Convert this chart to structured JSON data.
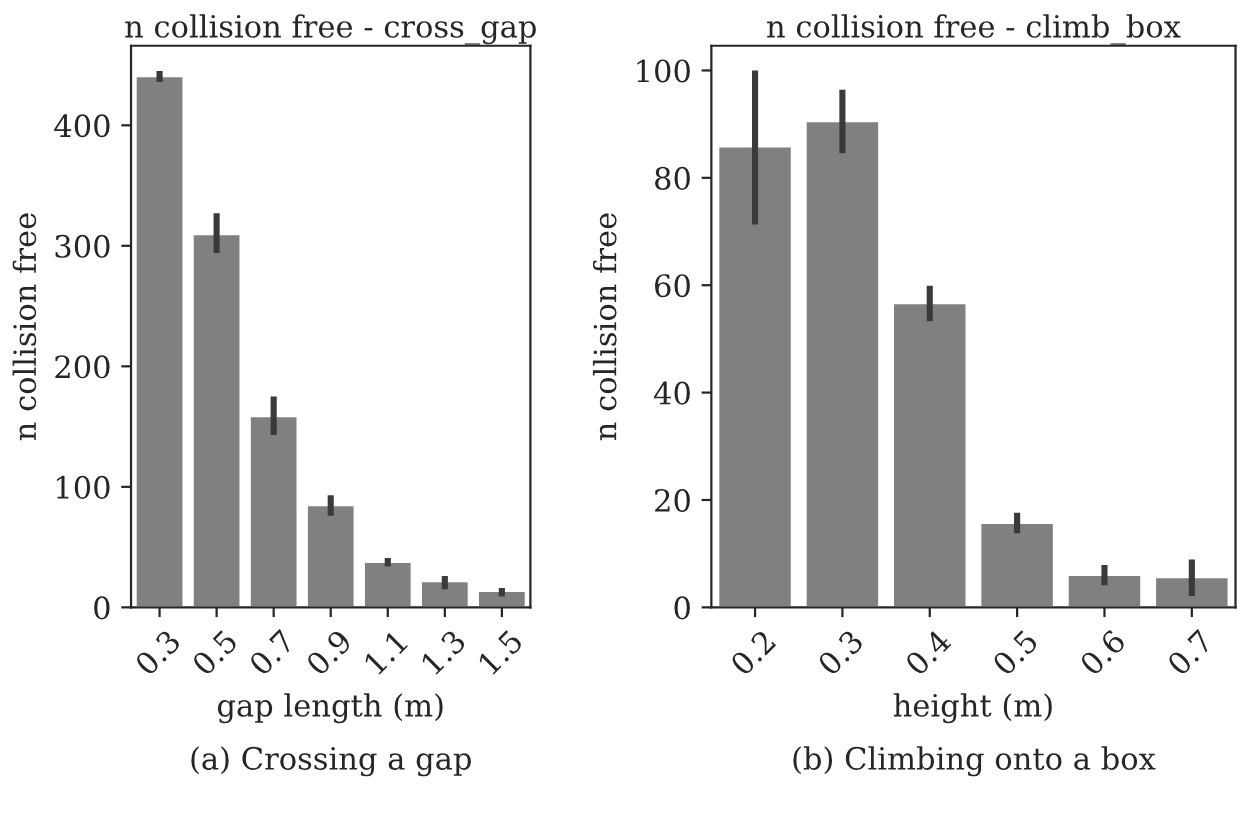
{
  "chart_data": [
    {
      "type": "bar",
      "title": "n collision free - cross_gap",
      "xlabel": "gap length (m)",
      "ylabel": "n collision free",
      "categories": [
        "0.3",
        "0.5",
        "0.7",
        "0.9",
        "1.1",
        "1.3",
        "1.5"
      ],
      "series": [
        {
          "color": "#808080",
          "values": [
            441,
            310,
            159,
            85,
            38,
            22,
            14
          ],
          "errors": [
            [
              436,
              445
            ],
            [
              294,
              327
            ],
            [
              143,
              175
            ],
            [
              76,
              93
            ],
            [
              34,
              41
            ],
            [
              15,
              26
            ],
            [
              9,
              16
            ]
          ]
        }
      ],
      "ylim": [
        0,
        466
      ],
      "yticks": [
        0,
        100,
        200,
        300,
        400
      ],
      "grid": false,
      "legend": false,
      "annotations": [
        "(a) Crossing a gap"
      ]
    },
    {
      "type": "bar",
      "title": "n collision free - climb_box",
      "xlabel": "height (m)",
      "ylabel": "n collision free",
      "categories": [
        "0.2",
        "0.3",
        "0.4",
        "0.5",
        "0.6",
        "0.7"
      ],
      "series": [
        {
          "color": "#808080",
          "values": [
            85.9,
            90.6,
            56.7,
            15.8,
            6.1,
            5.7
          ],
          "errors": [
            [
              71.3,
              100
            ],
            [
              84.6,
              96.4
            ],
            [
              53.3,
              59.9
            ],
            [
              13.8,
              17.6
            ],
            [
              4.1,
              7.9
            ],
            [
              2.1,
              8.9
            ]
          ]
        }
      ],
      "ylim": [
        0,
        104.6
      ],
      "yticks": [
        0,
        20,
        40,
        60,
        80,
        100
      ],
      "grid": false,
      "legend": false,
      "annotations": [
        "(b) Climbing onto a box"
      ]
    }
  ]
}
